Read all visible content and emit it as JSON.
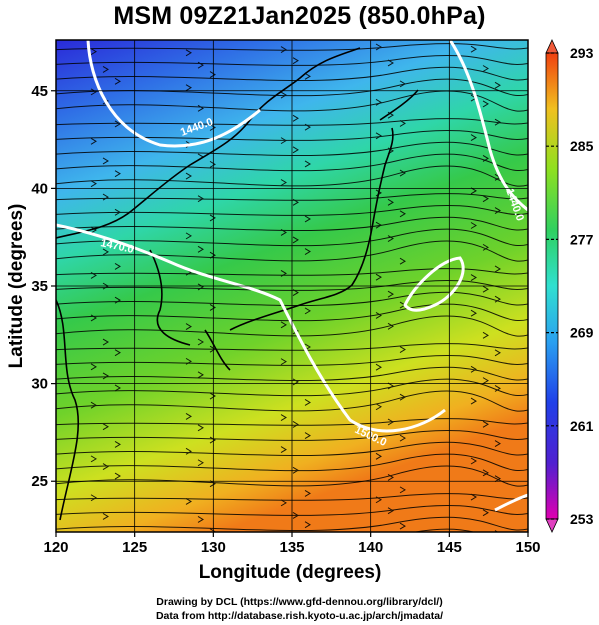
{
  "title": "MSM 09Z21Jan2025 (850.0hPa)",
  "chart_data": {
    "type": "heatmap",
    "title": "MSM 09Z21Jan2025 (850.0hPa)",
    "xlabel": "Longitude (degrees)",
    "ylabel": "Latitude  (degrees)",
    "xlim": [
      120,
      150
    ],
    "ylim": [
      22.4,
      47.6
    ],
    "xticks": [
      120,
      125,
      130,
      135,
      140,
      145,
      150
    ],
    "yticks": [
      25,
      30,
      35,
      40,
      45
    ],
    "grid": true,
    "colorbar": {
      "min": 253,
      "max": 293,
      "ticks": [
        253,
        261,
        269,
        277,
        285,
        293
      ]
    },
    "contours": [
      {
        "label": "1440.0",
        "color": "#ffffff"
      },
      {
        "label": "1440.0",
        "color": "#ffffff"
      },
      {
        "label": "1470.0",
        "color": "#ffffff"
      },
      {
        "label": "1500.0",
        "color": "#ffffff"
      }
    ]
  },
  "credits": [
    "Drawing by DCL (https://www.gfd-dennou.org/library/dcl/)",
    "Data from http://database.rish.kyoto-u.ac.jp/arch/jmadata/"
  ]
}
